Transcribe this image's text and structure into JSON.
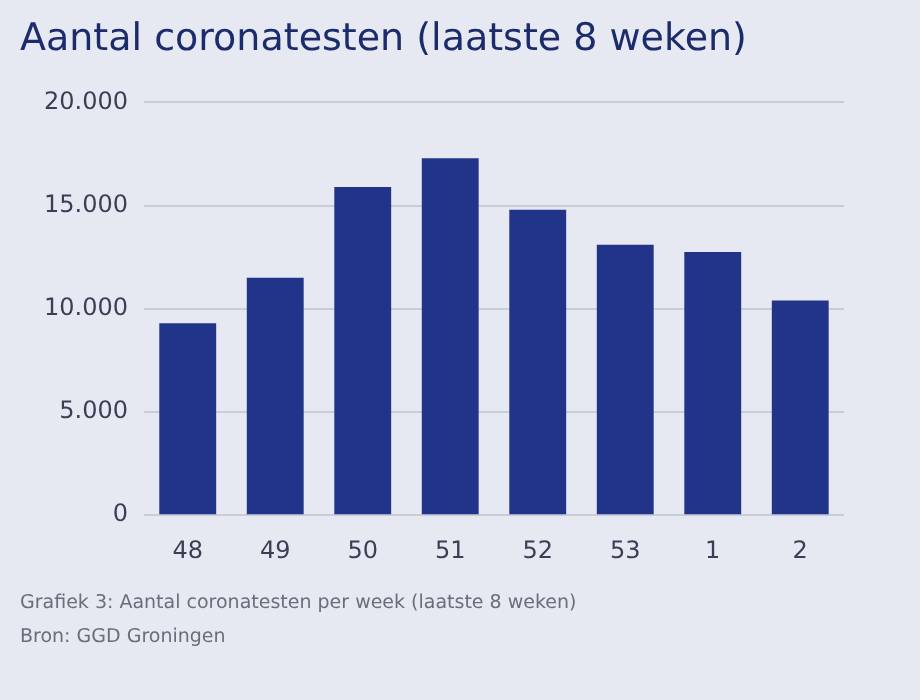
{
  "chart_data": {
    "type": "bar",
    "title": "Aantal coronatesten (laatste 8 weken)",
    "categories": [
      "48",
      "49",
      "50",
      "51",
      "52",
      "53",
      "1",
      "2"
    ],
    "values": [
      9300,
      11500,
      15900,
      17300,
      14800,
      13100,
      12750,
      10400
    ],
    "color": "#22338a",
    "ylim": [
      0,
      20000
    ],
    "yticks": [
      0,
      {
        "value": 5000,
        "label": "5.000"
      },
      {
        "value": 10000,
        "label": "10.000"
      },
      {
        "value": 15000,
        "label": "15.000"
      },
      {
        "value": 20000,
        "label": "20.000"
      }
    ],
    "grid": "y",
    "annotations": [
      "Grafiek 3: Aantal coronatesten per week (laatste 8 weken)",
      "Bron: GGD Groningen"
    ]
  }
}
